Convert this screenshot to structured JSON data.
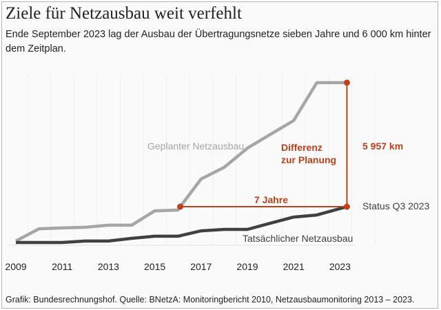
{
  "title": "Ziele für Netzausbau weit verfehlt",
  "subtitle": "Ende September 2023 lag der Ausbau der Übertragungsnetze sieben Jahre und 6 000 km hinter dem Zeitplan.",
  "footer": "Grafik: Bundesrechnungshof. Quelle: BNetzA: Monitoringbericht 2010, Netzausbaumonitoring 2013 – 2023.",
  "chart_data": {
    "type": "line",
    "xlabel": "",
    "ylabel": "",
    "xlim": [
      2009,
      2023.3
    ],
    "x_ticks": [
      "2009",
      "2011",
      "2013",
      "2015",
      "2017",
      "2019",
      "2021",
      "2023"
    ],
    "grid": "vertical",
    "series": [
      {
        "name": "Geplanter Netzausbau",
        "color": "#a6a6a6",
        "x": [
          2009,
          2010,
          2011,
          2012,
          2013,
          2014,
          2015,
          2016,
          2016.1,
          2017,
          2018,
          2019,
          2020,
          2021,
          2022,
          2023.3
        ],
        "y": [
          70,
          660,
          700,
          730,
          830,
          830,
          1520,
          1560,
          1720,
          3050,
          3610,
          4530,
          5200,
          5860,
          7680,
          7680
        ]
      },
      {
        "name": "Tatsächlicher Netzausbau",
        "color": "#404040",
        "x": [
          2009,
          2010,
          2011,
          2012,
          2013,
          2014,
          2015,
          2016,
          2017,
          2018,
          2019,
          2020,
          2021,
          2022,
          2023.3
        ],
        "y": [
          0,
          0,
          0,
          70,
          70,
          200,
          300,
          300,
          560,
          630,
          630,
          930,
          1220,
          1320,
          1720
        ]
      }
    ],
    "annotations": {
      "color": "#c0401a",
      "gap_years_label": "7 Jahre",
      "gap_km_label": "5 957 km",
      "difference_label_1": "Differenz",
      "difference_label_2": "zur Planung",
      "status_label": "Status Q3 2023",
      "gap_start": {
        "x": 2016.1,
        "y": 1720
      },
      "gap_end": {
        "x": 2023.3,
        "y": 1720
      },
      "planned_end": {
        "x": 2023.3,
        "y": 7680
      }
    }
  }
}
